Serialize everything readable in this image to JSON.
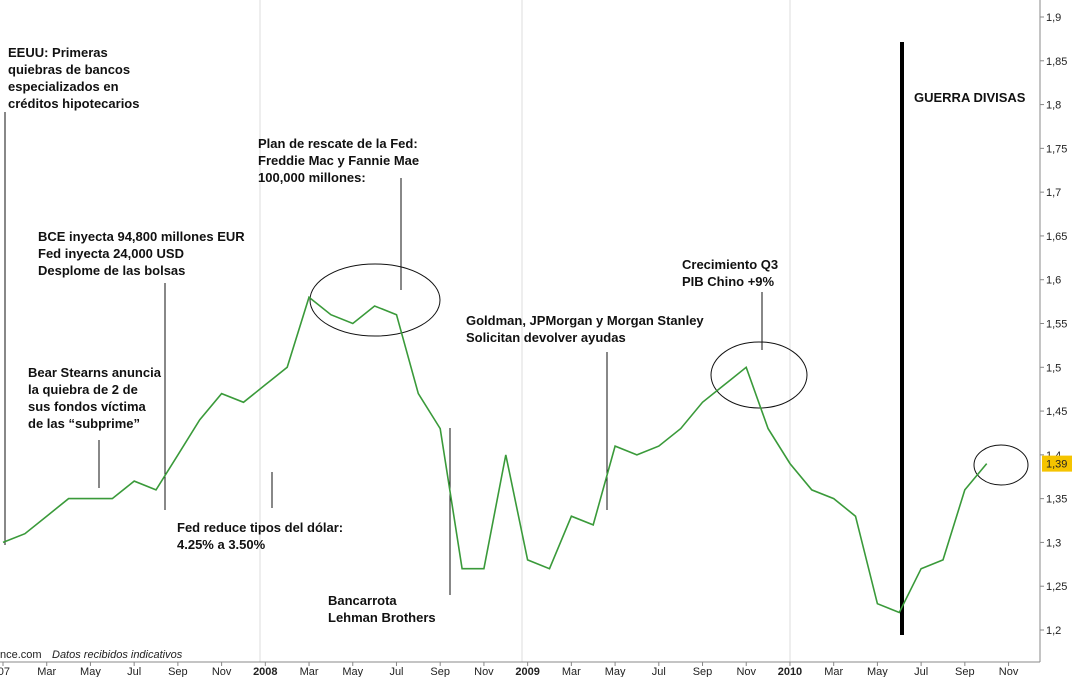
{
  "chart_data": {
    "type": "line",
    "categories": [
      "07",
      null,
      "Mar",
      null,
      "May",
      null,
      "Jul",
      null,
      "Sep",
      null,
      "Nov",
      null,
      "2008",
      null,
      "Mar",
      null,
      "May",
      null,
      "Jul",
      null,
      "Sep",
      null,
      "Nov",
      null,
      "2009",
      null,
      "Mar",
      null,
      "May",
      null,
      "Jul",
      null,
      "Sep",
      null,
      "Nov",
      null,
      "2010",
      null,
      "Mar",
      null,
      "May",
      null,
      "Jul",
      null,
      "Sep",
      null,
      "Nov"
    ],
    "series": [
      {
        "color": "#3a9a3a",
        "values": [
          1.3,
          1.31,
          1.33,
          1.35,
          1.35,
          1.35,
          1.37,
          1.36,
          1.4,
          1.44,
          1.47,
          1.46,
          1.48,
          1.5,
          1.58,
          1.56,
          1.55,
          1.57,
          1.56,
          1.47,
          1.43,
          1.27,
          1.27,
          1.4,
          1.28,
          1.27,
          1.33,
          1.32,
          1.41,
          1.4,
          1.41,
          1.43,
          1.46,
          1.48,
          1.5,
          1.43,
          1.39,
          1.36,
          1.35,
          1.33,
          1.23,
          1.22,
          1.27,
          1.28,
          1.36,
          1.39,
          null
        ]
      }
    ],
    "ylim": [
      1.185,
      1.915
    ],
    "yticks": [
      {
        "value": 1.2,
        "label": "1,2"
      },
      {
        "value": 1.25,
        "label": "1,25"
      },
      {
        "value": 1.3,
        "label": "1,3"
      },
      {
        "value": 1.35,
        "label": "1,35"
      },
      {
        "value": 1.4,
        "label": "1,4"
      },
      {
        "value": 1.45,
        "label": "1,45"
      },
      {
        "value": 1.5,
        "label": "1,5"
      },
      {
        "value": 1.55,
        "label": "1,55"
      },
      {
        "value": 1.6,
        "label": "1,6"
      },
      {
        "value": 1.65,
        "label": "1,65"
      },
      {
        "value": 1.7,
        "label": "1,7"
      },
      {
        "value": 1.75,
        "label": "1,75"
      },
      {
        "value": 1.8,
        "label": "1,8"
      },
      {
        "value": 1.85,
        "label": "1,85"
      },
      {
        "value": 1.9,
        "label": "1,9"
      }
    ],
    "last_price": {
      "value": 1.39,
      "label": "1,39"
    },
    "grid": false,
    "source": "nce.com",
    "note": "Datos recibidos indicativos",
    "annotations": [
      [
        "EEUU: Primeras",
        "quiebras de bancos",
        "especializados en",
        "créditos hipotecarios"
      ],
      [
        "Plan de rescate de la Fed:",
        "Freddie Mac y Fannie Mae",
        "100,000 millones:"
      ],
      [
        "BCE inyecta 94,800 millones EUR",
        "Fed inyecta 24,000 USD",
        "Desplome de las bolsas"
      ],
      [
        "Bear Stearns anuncia",
        "la quiebra de 2 de",
        "sus fondos víctima",
        "de las “subprime”"
      ],
      [
        "Crecimiento Q3",
        "PIB Chino +9%"
      ],
      [
        "Goldman, JPMorgan y Morgan Stanley",
        "Solicitan devolver ayudas"
      ],
      [
        "Fed reduce tipos del dólar:",
        "4.25% a 3.50%"
      ],
      [
        "Bancarrota",
        "Lehman Brothers"
      ],
      [
        "GUERRA DIVISAS"
      ]
    ]
  }
}
